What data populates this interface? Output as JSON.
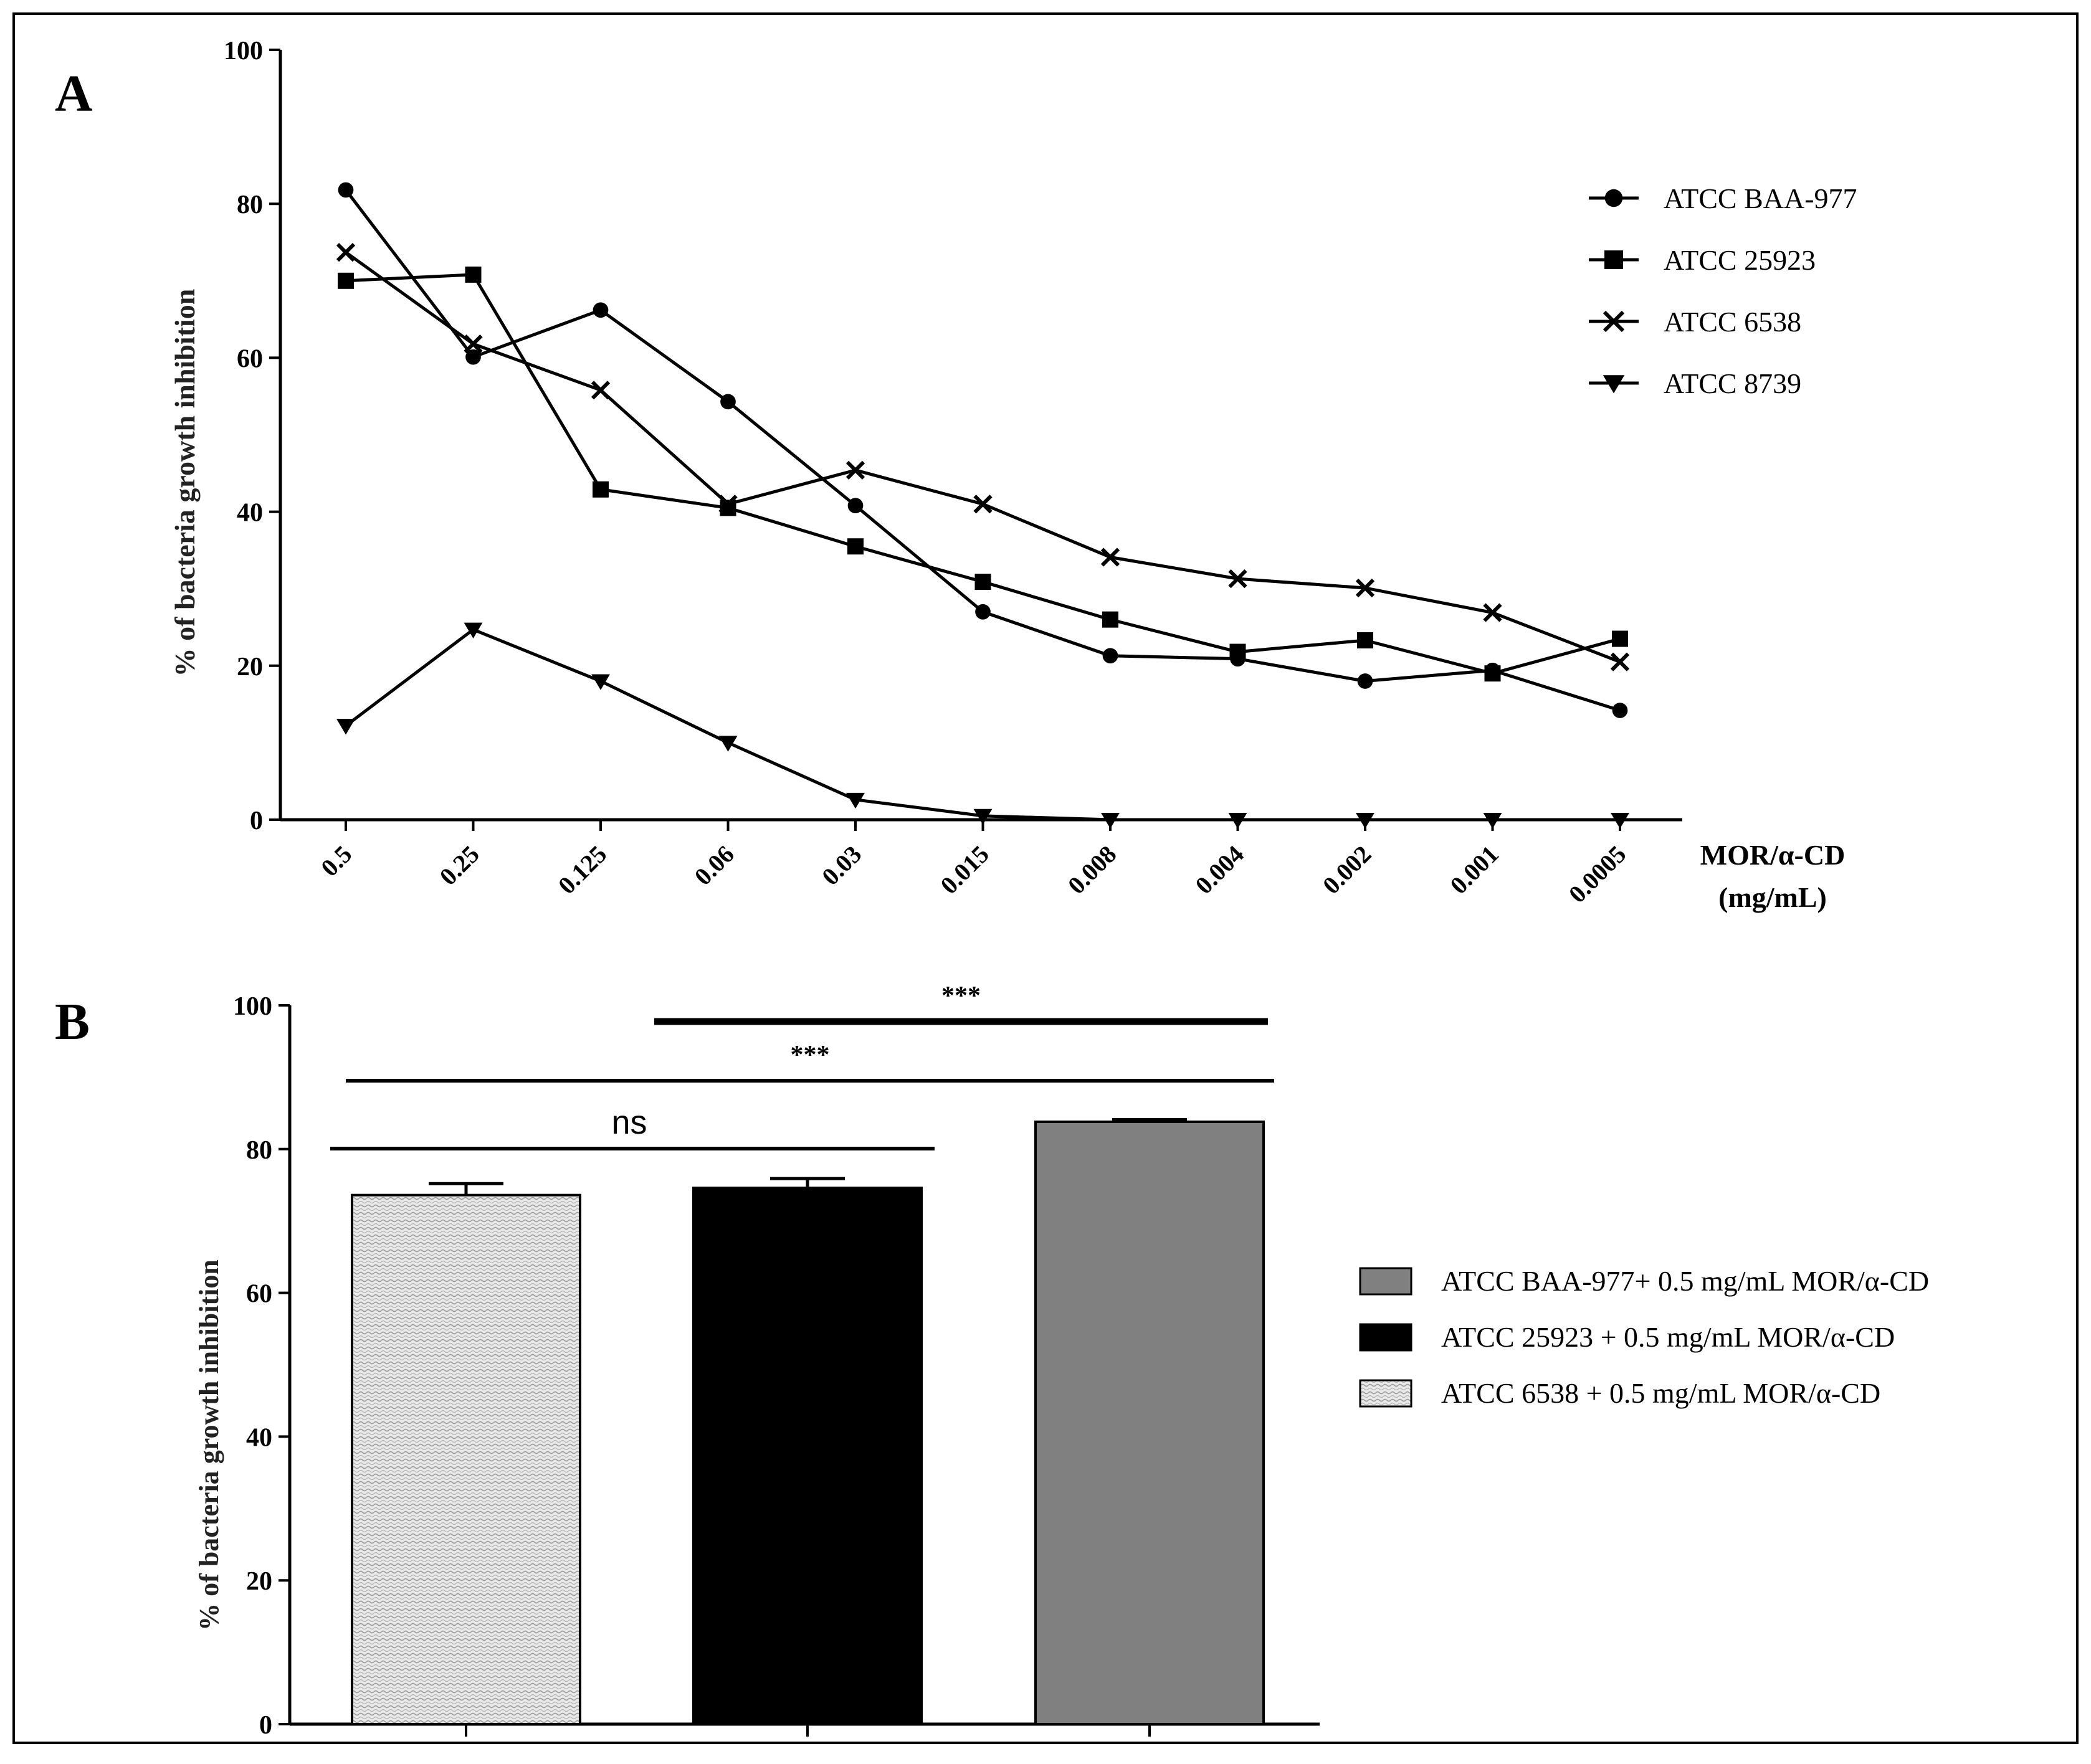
{
  "panels": {
    "a_label": "A",
    "b_label": "B"
  },
  "chart_data": [
    {
      "type": "line",
      "title": "",
      "panel": "A",
      "xlabel_line1": "MOR/α-CD",
      "xlabel_line2": "(mg/mL)",
      "ylabel": "% of bacteria growth inhibition",
      "ylim": [
        0,
        100
      ],
      "yticks": [
        "0",
        "20",
        "40",
        "60",
        "80",
        "100"
      ],
      "categories": [
        "0.5",
        "0.25",
        "0.125",
        "0.06",
        "0.03",
        "0.015",
        "0.008",
        "0.004",
        "0.002",
        "0.001",
        "0.0005"
      ],
      "legend_position": "top-right",
      "series": [
        {
          "name": "ATCC BAA-977",
          "marker": "circle",
          "values": [
            81.8,
            60.1,
            66.2,
            54.3,
            40.8,
            27.0,
            21.3,
            20.9,
            18.0,
            19.4,
            14.2
          ]
        },
        {
          "name": " ATCC 25923",
          "marker": "square",
          "values": [
            70.0,
            70.8,
            42.9,
            40.5,
            35.5,
            30.9,
            26.0,
            21.8,
            23.3,
            19.0,
            23.5
          ]
        },
        {
          "name": "ATCC 6538",
          "marker": "x",
          "values": [
            73.7,
            61.8,
            55.8,
            41.0,
            45.4,
            41.0,
            34.1,
            31.3,
            30.1,
            26.9,
            20.5
          ]
        },
        {
          "name": "ATCC 8739",
          "marker": "triangle",
          "values": [
            12.2,
            24.7,
            18.0,
            10.0,
            2.6,
            0.5,
            0.0,
            0.0,
            0.0,
            0.0,
            0.0
          ]
        }
      ]
    },
    {
      "type": "bar",
      "title": "",
      "panel": "B",
      "ylabel": "% of bacteria growth inhibition",
      "ylim": [
        0,
        100
      ],
      "yticks": [
        "0",
        "20",
        "40",
        "60",
        "80",
        "100"
      ],
      "legend_position": "right",
      "bars": [
        {
          "name": "ATCC 6538 + 0.5 mg/mL MOR/α-CD",
          "value": 73.6,
          "error": 1.6,
          "fill": "pattern"
        },
        {
          "name": "ATCC 25923 + 0.5 mg/mL MOR/α-CD",
          "value": 74.6,
          "error": 1.3,
          "fill": "#000000"
        },
        {
          "name": "ATCC BAA-977+ 0.5 mg/mL MOR/α-CD",
          "value": 83.8,
          "error": 0.3,
          "fill": "#808080"
        }
      ],
      "legend_order": [
        2,
        1,
        0
      ],
      "significance": [
        {
          "label": "***",
          "from": 1,
          "to": 2,
          "weight": "bold"
        },
        {
          "label": "***",
          "from": 0,
          "to": 2,
          "weight": "normal"
        },
        {
          "label": "ns",
          "from": 0,
          "to": 1,
          "weight": "normal"
        }
      ]
    }
  ]
}
